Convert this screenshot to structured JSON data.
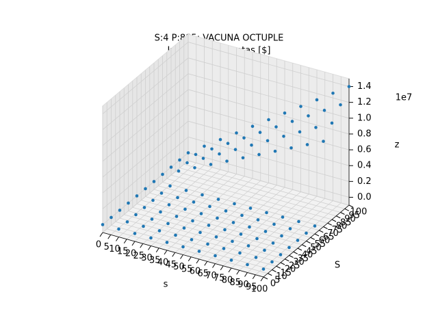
{
  "chart_data": {
    "type": "scatter3d",
    "title": "S:4 P:885: VACUNA OCTUPLE",
    "subtitle": "Ingresos por ventas [$]",
    "x_label": "s",
    "y_label": "S",
    "z_label": "z",
    "z_offset_label": "1e7",
    "color": "#1f77b4",
    "xlim": [
      0,
      100
    ],
    "ylim": [
      0,
      100
    ],
    "zlim": [
      -1000000,
      15000000
    ],
    "xticks": [
      0,
      5,
      10,
      15,
      20,
      25,
      30,
      35,
      40,
      45,
      50,
      55,
      60,
      65,
      70,
      75,
      80,
      85,
      90,
      95,
      100
    ],
    "yticks": [
      0,
      5,
      10,
      15,
      20,
      25,
      30,
      35,
      40,
      45,
      50,
      55,
      60,
      65,
      70,
      75,
      80,
      85,
      90,
      95,
      100
    ],
    "zticks": [
      {
        "value": 0,
        "label": "0.0"
      },
      {
        "value": 2000000,
        "label": "0.2"
      },
      {
        "value": 4000000,
        "label": "0.4"
      },
      {
        "value": 6000000,
        "label": "0.6"
      },
      {
        "value": 8000000,
        "label": "0.8"
      },
      {
        "value": 10000000,
        "label": "1.0"
      },
      {
        "value": 12000000,
        "label": "1.2"
      },
      {
        "value": 14000000,
        "label": "1.4"
      }
    ],
    "x": [
      0,
      10,
      20,
      30,
      40,
      50,
      60,
      70,
      80,
      90,
      100,
      0,
      10,
      20,
      30,
      40,
      50,
      60,
      70,
      80,
      90,
      100,
      0,
      10,
      20,
      30,
      40,
      50,
      60,
      70,
      80,
      90,
      100,
      0,
      10,
      20,
      30,
      40,
      50,
      60,
      70,
      80,
      90,
      100,
      0,
      10,
      20,
      30,
      40,
      50,
      60,
      70,
      80,
      90,
      100,
      0,
      10,
      20,
      30,
      40,
      50,
      60,
      70,
      80,
      90,
      100,
      0,
      10,
      20,
      30,
      40,
      50,
      60,
      70,
      80,
      90,
      100,
      0,
      10,
      20,
      30,
      40,
      50,
      60,
      70,
      80,
      90,
      100,
      0,
      10,
      20,
      30,
      40,
      50,
      60,
      70,
      80,
      90,
      100,
      0,
      10,
      20,
      30,
      40,
      50,
      60,
      70,
      80,
      90,
      100,
      0,
      10,
      20,
      30,
      40,
      50,
      60,
      70,
      80,
      90,
      100
    ],
    "y": [
      0,
      0,
      0,
      0,
      0,
      0,
      0,
      0,
      0,
      0,
      0,
      10,
      10,
      10,
      10,
      10,
      10,
      10,
      10,
      10,
      10,
      10,
      20,
      20,
      20,
      20,
      20,
      20,
      20,
      20,
      20,
      20,
      20,
      30,
      30,
      30,
      30,
      30,
      30,
      30,
      30,
      30,
      30,
      30,
      40,
      40,
      40,
      40,
      40,
      40,
      40,
      40,
      40,
      40,
      40,
      50,
      50,
      50,
      50,
      50,
      50,
      50,
      50,
      50,
      50,
      50,
      60,
      60,
      60,
      60,
      60,
      60,
      60,
      60,
      60,
      60,
      60,
      70,
      70,
      70,
      70,
      70,
      70,
      70,
      70,
      70,
      70,
      70,
      80,
      80,
      80,
      80,
      80,
      80,
      80,
      80,
      80,
      80,
      80,
      90,
      90,
      90,
      90,
      90,
      90,
      90,
      90,
      90,
      90,
      90,
      100,
      100,
      100,
      100,
      100,
      100,
      100,
      100,
      100,
      100,
      100
    ],
    "z": [
      0,
      0,
      0,
      0,
      0,
      0,
      0,
      0,
      0,
      0,
      0,
      0,
      0,
      0,
      0,
      0,
      0,
      0,
      0,
      0,
      0,
      0,
      0,
      0,
      0,
      0,
      0,
      0,
      0,
      0,
      0,
      0,
      0,
      0,
      0,
      0,
      0,
      0,
      0,
      0,
      0,
      0,
      0,
      0,
      0,
      0,
      0,
      0,
      0,
      0,
      0,
      0,
      0,
      0,
      0,
      0,
      0,
      0,
      0,
      0,
      0,
      0,
      0,
      0,
      0,
      0,
      0,
      0,
      0,
      0,
      0,
      0,
      0,
      0,
      0,
      0,
      0,
      0,
      980000,
      1960000,
      2940000,
      3920000,
      4900000,
      5880000,
      6860000,
      7840000,
      8820000,
      9800000,
      0,
      1120000,
      2240000,
      3360000,
      4480000,
      5600000,
      6720000,
      7840000,
      8960000,
      10080000,
      11200000,
      0,
      1260000,
      2520000,
      3780000,
      5040000,
      6300000,
      7560000,
      8820000,
      10080000,
      11340000,
      12600000,
      0,
      1400000,
      2800000,
      4200000,
      5600000,
      7000000,
      8400000,
      9800000,
      11200000,
      12600000,
      14000000
    ]
  }
}
